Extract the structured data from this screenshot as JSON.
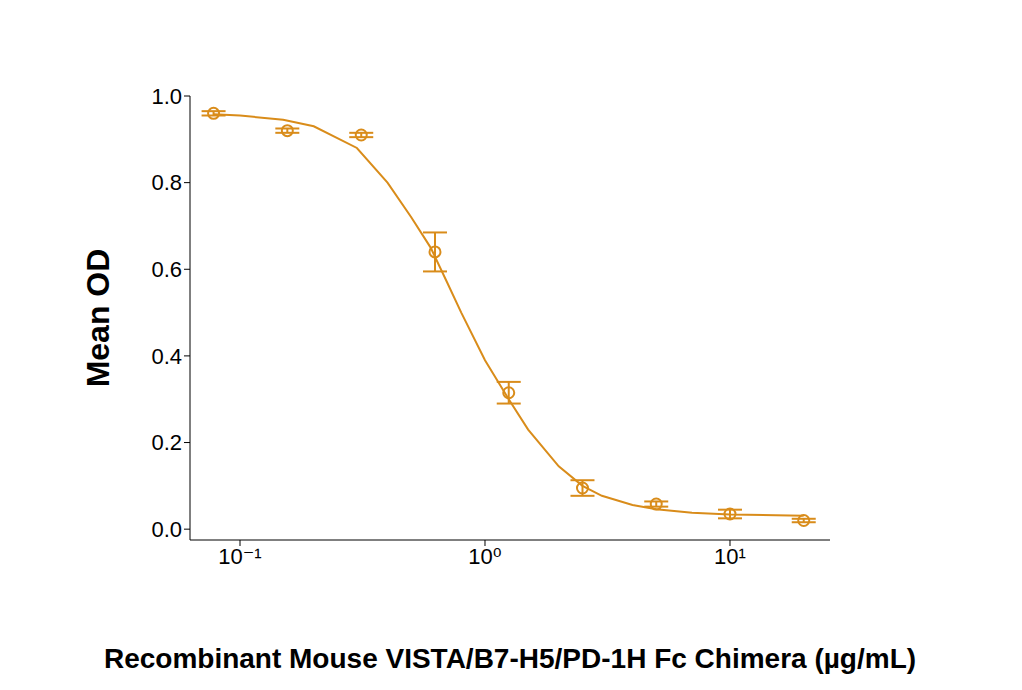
{
  "chart_data": {
    "type": "scatter",
    "x_label": "Recombinant Mouse VISTA/B7-H5/PD-1H Fc Chimera (µg/mL)",
    "y_label": "Mean OD",
    "log": "x",
    "grid": false,
    "xlim": [
      0.0625,
      25.6
    ],
    "ylim": [
      -0.025,
      1.0
    ],
    "xticks": [
      {
        "value": 0.1,
        "label": "10⁻¹"
      },
      {
        "value": 1,
        "label": "10⁰"
      },
      {
        "value": 10,
        "label": "10¹"
      }
    ],
    "yticks": [
      {
        "value": 0,
        "label": "0.0"
      },
      0.2,
      0.4,
      0.6,
      0.8,
      {
        "value": 1,
        "label": "1.0"
      }
    ],
    "series": [
      {
        "type": "scatter",
        "marker": "circle",
        "color": "#d98c1a",
        "x": [
          0.078,
          0.156,
          0.3125,
          0.625,
          1.25,
          2.5,
          5,
          10,
          20
        ],
        "values": [
          0.96,
          0.92,
          0.91,
          0.64,
          0.315,
          0.095,
          0.058,
          0.035,
          0.02
        ],
        "errors": [
          0.005,
          0.005,
          0.005,
          0.045,
          0.025,
          0.018,
          0.006,
          0.01,
          0.004
        ]
      },
      {
        "type": "line",
        "line_style": "solid",
        "color": "#d98c1a",
        "x": [
          0.078,
          0.1,
          0.15,
          0.2,
          0.3,
          0.4,
          0.5,
          0.6,
          0.7,
          0.8,
          1.0,
          1.25,
          1.5,
          2,
          2.5,
          3,
          4,
          5,
          7,
          10,
          20
        ],
        "values": [
          0.958,
          0.955,
          0.945,
          0.93,
          0.88,
          0.8,
          0.72,
          0.65,
          0.57,
          0.5,
          0.39,
          0.3,
          0.23,
          0.145,
          0.1,
          0.077,
          0.056,
          0.046,
          0.038,
          0.034,
          0.031
        ]
      }
    ]
  }
}
